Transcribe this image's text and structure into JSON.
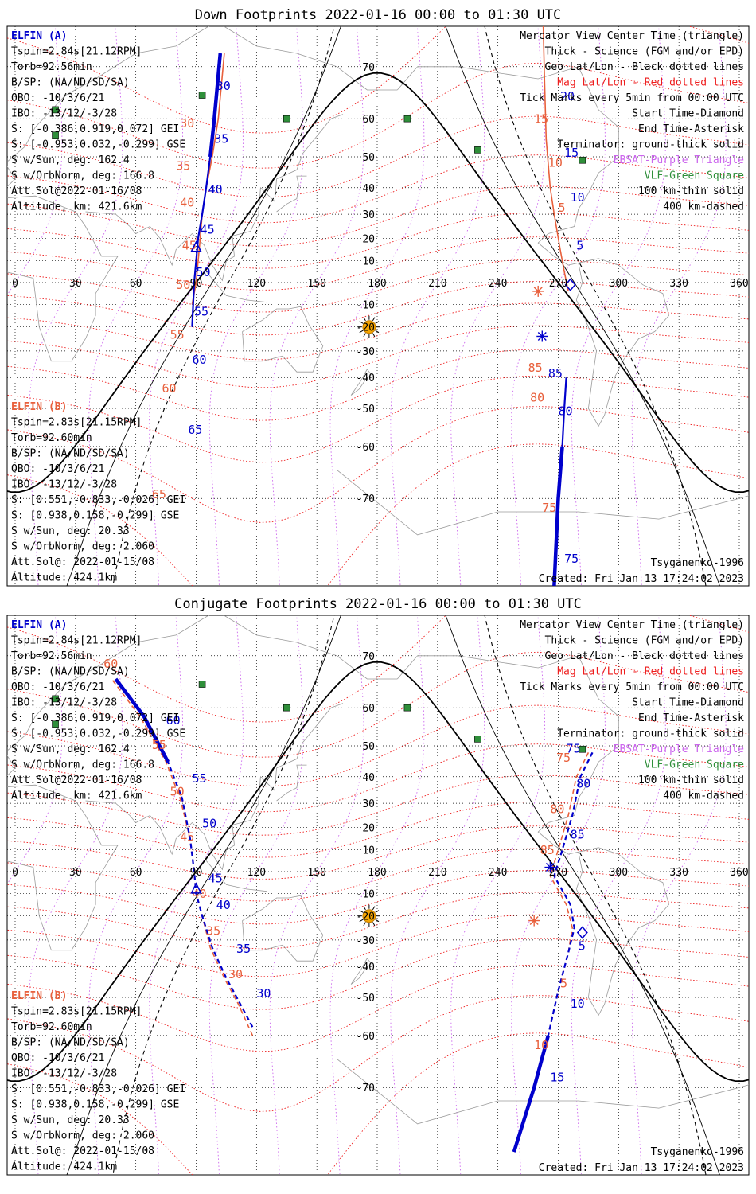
{
  "colors": {
    "elfin_a": "#0000cc",
    "elfin_b": "#e8603c",
    "mag_grid": "#ee1c1c",
    "ebsat": "#cc66ee",
    "vlf": "#2f8f3a",
    "sun": "#f5a500",
    "coast": "#9a9a9a"
  },
  "chart_data": [
    {
      "type": "map",
      "projection": "mercator",
      "title": "Down Footprints 2022-01-16 00:00 to 01:30 UTC",
      "lon_ticks": [
        "0",
        "30",
        "60",
        "90",
        "120",
        "150",
        "180",
        "210",
        "240",
        "270",
        "300",
        "330",
        "360"
      ],
      "lat_ticks": [
        "70",
        "60",
        "50",
        "40",
        "30",
        "20",
        "10",
        "-10",
        "-20",
        "-30",
        "-40",
        "-50",
        "-60",
        "-70"
      ],
      "legend": [
        "Mercator View Center Time (triangle)",
        "Thick - Science (FGM and/or EPD)",
        "Geo Lat/Lon - Black dotted lines",
        "Mag Lat/Lon - Red dotted lines",
        "Tick Marks every 5min from 00:00 UTC",
        "Start Time-Diamond",
        "End Time-Asterisk",
        "Terminator: ground-thick solid",
        "EBSAT-Purple Triangle",
        "VLF-Green Square",
        "100 km-thin solid",
        "400 km-dashed"
      ],
      "elfin_a": {
        "name": "ELFIN (A)",
        "lines": [
          "Tspin=2.84s[21.12RPM]",
          "Torb=92.56min",
          "B/SP: (NA/ND/SD/SA)",
          "OBO: -10/3/6/21",
          "IBO: -13/12/-3/28",
          "S: [-0.386,0.919,0.072] GEI",
          "S: [-0.953,0.032,-0.299] GSE",
          "S w/Sun, deg: 162.4",
          "S w/OrbNorm, deg: 166.8",
          "Att.Sol@2022-01-16/08",
          "Altitude, km: 421.6km"
        ]
      },
      "elfin_b": {
        "name": "ELFIN (B)",
        "lines": [
          "Tspin=2.83s[21.15RPM]",
          "Torb=92.60min",
          "B/SP: (NA/ND/SD/SA)",
          "OBO: -10/3/6/21",
          "IBO: -13/12/-3/28",
          "S: [0.551,-0.833,-0.026] GEI",
          "S: [0.938,0.158,-0.299] GSE",
          "S w/Sun, deg: 20.33",
          "S w/OrbNorm, deg: 2.060",
          "Att.Sol@: 2022-01-15/08",
          "Altitude: 424.1km"
        ]
      },
      "model": "Tsyganenko-1996",
      "created": "Created: Fri Jan 13 17:24:02 2023",
      "track_a_west": [
        [
          88,
          -20
        ],
        [
          89,
          0
        ],
        [
          90,
          10
        ],
        [
          91,
          20
        ],
        [
          93,
          30
        ],
        [
          95,
          40
        ],
        [
          97,
          50
        ],
        [
          99,
          60
        ],
        [
          102,
          72
        ]
      ],
      "track_a_east": [
        [
          268,
          -80
        ],
        [
          270,
          -70
        ],
        [
          272,
          -60
        ],
        [
          273,
          -50
        ],
        [
          274,
          -40
        ]
      ],
      "track_b_west": [
        [
          88,
          -10
        ],
        [
          90,
          0
        ],
        [
          91,
          10
        ],
        [
          92,
          20
        ],
        [
          93,
          30
        ],
        [
          95,
          40
        ],
        [
          98,
          50
        ],
        [
          101,
          60
        ],
        [
          104,
          72
        ]
      ],
      "track_b_east": [
        [
          275,
          -4
        ],
        [
          273,
          5
        ],
        [
          271,
          15
        ],
        [
          268,
          30
        ],
        [
          266,
          40
        ],
        [
          264,
          55
        ],
        [
          263,
          70
        ],
        [
          262,
          80
        ]
      ],
      "ticks_a": [
        {
          "t": "30",
          "lon": 100,
          "lat": 66
        },
        {
          "t": "35",
          "lon": 99,
          "lat": 54
        },
        {
          "t": "40",
          "lon": 96,
          "lat": 38
        },
        {
          "t": "45",
          "lon": 92,
          "lat": 22
        },
        {
          "t": "50",
          "lon": 90,
          "lat": 3
        },
        {
          "t": "55",
          "lon": 89,
          "lat": -15
        },
        {
          "t": "60",
          "lon": 88,
          "lat": -35
        },
        {
          "t": "65",
          "lon": 86,
          "lat": -57
        },
        {
          "t": "5",
          "lon": 279,
          "lat": 15
        },
        {
          "t": "10",
          "lon": 276,
          "lat": 35
        },
        {
          "t": "15",
          "lon": 273,
          "lat": 50
        },
        {
          "t": "20",
          "lon": 271,
          "lat": 64
        },
        {
          "t": "85",
          "lon": 265,
          "lat": -40
        },
        {
          "t": "80",
          "lon": 270,
          "lat": -52
        },
        {
          "t": "75",
          "lon": 273,
          "lat": -78
        }
      ],
      "ticks_b": [
        {
          "t": "30",
          "lon": 82,
          "lat": 58
        },
        {
          "t": "35",
          "lon": 80,
          "lat": 46
        },
        {
          "t": "40",
          "lon": 82,
          "lat": 33
        },
        {
          "t": "45",
          "lon": 83,
          "lat": 15
        },
        {
          "t": "50",
          "lon": 80,
          "lat": -3
        },
        {
          "t": "55",
          "lon": 77,
          "lat": -25
        },
        {
          "t": "60",
          "lon": 73,
          "lat": -45
        },
        {
          "t": "65",
          "lon": 68,
          "lat": -70
        },
        {
          "t": "5",
          "lon": 270,
          "lat": 31
        },
        {
          "t": "10",
          "lon": 265,
          "lat": 47
        },
        {
          "t": "15",
          "lon": 258,
          "lat": 59
        },
        {
          "t": "85",
          "lon": 255,
          "lat": -38
        },
        {
          "t": "80",
          "lon": 256,
          "lat": -48
        },
        {
          "t": "75",
          "lon": 262,
          "lat": -72
        }
      ],
      "view_center": {
        "lon": 90,
        "lat": 16
      },
      "start": {
        "lon": 276,
        "lat": -1
      },
      "end_a": {
        "lon": 262,
        "lat": -24
      },
      "end_b": {
        "lon": 260,
        "lat": -4
      },
      "sun": {
        "lon": 176,
        "lat": -20
      }
    },
    {
      "type": "map",
      "projection": "mercator",
      "title": "Conjugate Footprints 2022-01-16 00:00 to 01:30 UTC",
      "lon_ticks": [
        "0",
        "30",
        "60",
        "90",
        "120",
        "150",
        "180",
        "210",
        "240",
        "270",
        "300",
        "330",
        "360"
      ],
      "lat_ticks": [
        "70",
        "60",
        "50",
        "40",
        "30",
        "20",
        "10",
        "-10",
        "-20",
        "-30",
        "-40",
        "-50",
        "-60",
        "-70"
      ],
      "legend": [
        "Mercator View Center Time (triangle)",
        "Thick - Science (FGM and/or EPD)",
        "Geo Lat/Lon - Black dotted lines",
        "Mag Lat/Lon - Red dotted lines",
        "Tick Marks every 5min from 00:00 UTC",
        "Start Time-Diamond",
        "End Time-Asterisk",
        "Terminator: ground-thick solid",
        "EBSAT-Purple Triangle",
        "VLF-Green Square",
        "100 km-thin solid",
        "400 km-dashed"
      ],
      "elfin_a": {
        "name": "ELFIN (A)",
        "lines": [
          "Tspin=2.84s[21.12RPM]",
          "Torb=92.56min",
          "B/SP: (NA/ND/SD/SA)",
          "OBO: -10/3/6/21",
          "IBO: -13/12/-3/28",
          "S: [-0.386,0.919,0.072] GEI",
          "S: [-0.953,0.032,-0.299] GSE",
          "S w/Sun, deg: 162.4",
          "S w/OrbNorm, deg: 166.8",
          "Att.Sol@2022-01-16/08",
          "Altitude, km: 421.6km"
        ]
      },
      "elfin_b": {
        "name": "ELFIN (B)",
        "lines": [
          "Tspin=2.83s[21.15RPM]",
          "Torb=92.60min",
          "B/SP: (NA/ND/SD/SA)",
          "OBO: -10/3/6/21",
          "IBO: -13/12/-3/28",
          "S: [0.551,-0.833,-0.026] GEI",
          "S: [0.938,0.158,-0.299] GSE",
          "S w/Sun, deg: 20.33",
          "S w/OrbNorm, deg: 2.060",
          "Att.Sol@: 2022-01-15/08",
          "Altitude: 424.1km"
        ]
      },
      "model": "Tsyganenko-1996",
      "created": "Created: Fri Jan 13 17:24:02 2023",
      "track_a_west": [
        [
          118,
          -58
        ],
        [
          112,
          -52
        ],
        [
          105,
          -44
        ],
        [
          98,
          -33
        ],
        [
          93,
          -20
        ],
        [
          90,
          -10
        ],
        [
          89,
          0
        ],
        [
          87,
          15
        ],
        [
          83,
          32
        ],
        [
          76,
          45
        ],
        [
          64,
          58
        ],
        [
          50,
          66
        ]
      ],
      "track_a_east": [
        [
          248,
          -78
        ],
        [
          258,
          -70
        ],
        [
          265,
          -60
        ],
        [
          270,
          -48
        ],
        [
          275,
          -35
        ],
        [
          278,
          -25
        ],
        [
          276,
          -15
        ],
        [
          268,
          -2
        ],
        [
          272,
          10
        ],
        [
          277,
          25
        ],
        [
          281,
          40
        ],
        [
          287,
          48
        ]
      ],
      "track_b_west": [
        [
          118,
          -60
        ],
        [
          111,
          -52
        ],
        [
          104,
          -44
        ],
        [
          97,
          -33
        ],
        [
          93,
          -20
        ],
        [
          90,
          -10
        ],
        [
          89,
          0
        ],
        [
          87,
          15
        ],
        [
          82,
          32
        ],
        [
          75,
          45
        ],
        [
          62,
          58
        ],
        [
          48,
          66
        ]
      ],
      "track_b_east": [
        [
          248,
          -78
        ],
        [
          258,
          -70
        ],
        [
          265,
          -60
        ],
        [
          270,
          -48
        ],
        [
          275,
          -35
        ],
        [
          277,
          -25
        ],
        [
          274,
          -15
        ],
        [
          266,
          -2
        ],
        [
          270,
          10
        ],
        [
          275,
          25
        ],
        [
          279,
          40
        ],
        [
          285,
          48
        ]
      ],
      "ticks_a": [
        {
          "t": "30",
          "lon": 120,
          "lat": -50
        },
        {
          "t": "35",
          "lon": 110,
          "lat": -35
        },
        {
          "t": "40",
          "lon": 100,
          "lat": -17
        },
        {
          "t": "45",
          "lon": 96,
          "lat": -5
        },
        {
          "t": "50",
          "lon": 93,
          "lat": 20
        },
        {
          "t": "55",
          "lon": 88,
          "lat": 38
        },
        {
          "t": "60",
          "lon": 75,
          "lat": 56
        },
        {
          "t": "5",
          "lon": 280,
          "lat": -34
        },
        {
          "t": "10",
          "lon": 276,
          "lat": -53
        },
        {
          "t": "15",
          "lon": 266,
          "lat": -69
        },
        {
          "t": "85",
          "lon": 276,
          "lat": 15
        },
        {
          "t": "80",
          "lon": 279,
          "lat": 36
        },
        {
          "t": "75",
          "lon": 274,
          "lat": 48
        }
      ],
      "ticks_b": [
        {
          "t": "30",
          "lon": 106,
          "lat": -44
        },
        {
          "t": "35",
          "lon": 95,
          "lat": -28
        },
        {
          "t": "40",
          "lon": 88,
          "lat": -12
        },
        {
          "t": "45",
          "lon": 82,
          "lat": 14
        },
        {
          "t": "50",
          "lon": 77,
          "lat": 33
        },
        {
          "t": "55",
          "lon": 68,
          "lat": 49
        },
        {
          "t": "60",
          "lon": 44,
          "lat": 68
        },
        {
          "t": "5",
          "lon": 271,
          "lat": -47
        },
        {
          "t": "10",
          "lon": 258,
          "lat": -63
        },
        {
          "t": "85",
          "lon": 261,
          "lat": 8
        },
        {
          "t": "80",
          "lon": 266,
          "lat": 26
        },
        {
          "t": "75",
          "lon": 269,
          "lat": 45
        }
      ],
      "view_center": {
        "lon": 90,
        "lat": -8
      },
      "start": {
        "lon": 282,
        "lat": -27
      },
      "end_a": {
        "lon": 266,
        "lat": 2
      },
      "end_b": {
        "lon": 258,
        "lat": -22
      },
      "sun": {
        "lon": 176,
        "lat": -20
      }
    }
  ]
}
